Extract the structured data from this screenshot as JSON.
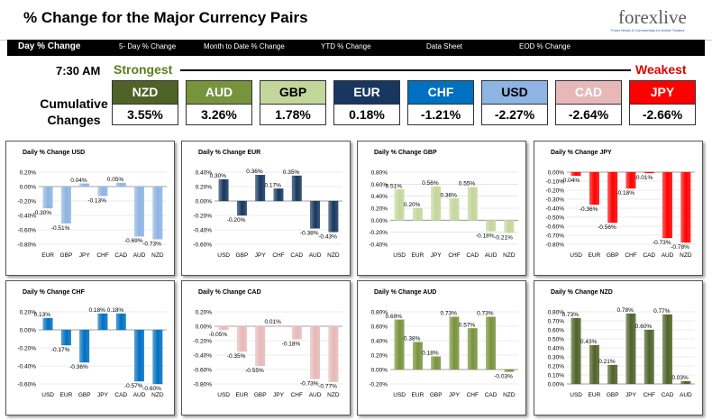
{
  "header": {
    "title": "% Change for the Major Currency Pairs",
    "logo_main": "forexlive",
    "logo_tag": "Forex News & Commentary for Active Traders"
  },
  "nav": [
    {
      "label": "Day % Change",
      "active": true
    },
    {
      "label": "5- Day % Change"
    },
    {
      "label": "Month to Date % Change"
    },
    {
      "label": "YTD % Change"
    },
    {
      "label": "Data Sheet"
    },
    {
      "label": "EOD % Change"
    }
  ],
  "time": "7:30 AM",
  "strongest_label": "Strongest",
  "weakest_label": "Weakest",
  "cumulative_label": "Cumulative Changes",
  "cumulative": [
    {
      "ccy": "NZD",
      "value": "3.55%",
      "color": "#4f6228"
    },
    {
      "ccy": "AUD",
      "value": "3.26%",
      "color": "#77933c"
    },
    {
      "ccy": "GBP",
      "value": "1.78%",
      "color": "#c3d69b",
      "text_color": "#000"
    },
    {
      "ccy": "EUR",
      "value": "0.18%",
      "color": "#17375e"
    },
    {
      "ccy": "CHF",
      "value": "-1.21%",
      "color": "#0070c0"
    },
    {
      "ccy": "USD",
      "value": "-2.27%",
      "color": "#8db4e2",
      "text_color": "#000"
    },
    {
      "ccy": "CAD",
      "value": "-2.64%",
      "color": "#e6b9b8"
    },
    {
      "ccy": "JPY",
      "value": "-2.66%",
      "color": "#ff0000"
    }
  ],
  "chart_data": [
    {
      "type": "bar",
      "title": "Daily % Change USD",
      "categories": [
        "EUR",
        "GBP",
        "JPY",
        "CHF",
        "CAD",
        "AUD",
        "NZD"
      ],
      "values": [
        -0.3,
        -0.51,
        0.04,
        -0.13,
        0.05,
        -0.69,
        -0.73
      ],
      "labels": [
        "-0.30%",
        "-0.51%",
        "0.04%",
        "-0.13%",
        "0.05%",
        "-0.69%",
        "-0.73%"
      ],
      "ylim": [
        -0.8,
        0.2
      ],
      "yticks": [
        "0.20%",
        "0.00%",
        "-0.20%",
        "-0.40%",
        "-0.60%",
        "-0.80%"
      ],
      "color": "#8db4e2"
    },
    {
      "type": "bar",
      "title": "Daily % Change EUR",
      "categories": [
        "USD",
        "GBP",
        "JPY",
        "CHF",
        "CAD",
        "AUD",
        "NZD"
      ],
      "values": [
        0.3,
        -0.2,
        0.36,
        0.17,
        0.35,
        -0.38,
        -0.43
      ],
      "labels": [
        "0.30%",
        "-0.20%",
        "0.36%",
        "0.17%",
        "0.35%",
        "-0.38%",
        "-0.43%"
      ],
      "ylim": [
        -0.6,
        0.4
      ],
      "yticks": [
        "0.40%",
        "0.20%",
        "0.00%",
        "-0.20%",
        "-0.40%",
        "-0.60%"
      ],
      "color": "#17375e"
    },
    {
      "type": "bar",
      "title": "Daily % Change GBP",
      "categories": [
        "USD",
        "EUR",
        "JPY",
        "CHF",
        "CAD",
        "AUD",
        "NZD"
      ],
      "values": [
        0.51,
        0.2,
        0.56,
        0.36,
        0.55,
        -0.18,
        -0.21
      ],
      "labels": [
        "0.51%",
        "0.20%",
        "0.56%",
        "0.36%",
        "0.55%",
        "-0.18%",
        "-0.21%"
      ],
      "ylim": [
        -0.4,
        0.8
      ],
      "yticks": [
        "0.80%",
        "0.60%",
        "0.40%",
        "0.20%",
        "0.00%",
        "-0.20%",
        "-0.40%"
      ],
      "color": "#c3d69b"
    },
    {
      "type": "bar",
      "title": "Daily % Change JPY",
      "categories": [
        "USD",
        "EUR",
        "GBP",
        "CHF",
        "CAD",
        "AUD",
        "NZD"
      ],
      "values": [
        -0.04,
        -0.36,
        -0.56,
        -0.18,
        -0.01,
        -0.73,
        -0.78
      ],
      "labels": [
        "-0.04%",
        "-0.36%",
        "-0.56%",
        "-0.18%",
        "-0.01%",
        "-0.73%",
        "-0.78%"
      ],
      "ylim": [
        -0.8,
        0.0
      ],
      "yticks": [
        "0.00%",
        "-0.10%",
        "-0.20%",
        "-0.30%",
        "-0.40%",
        "-0.50%",
        "-0.60%",
        "-0.70%",
        "-0.80%"
      ],
      "color": "#ff0000"
    },
    {
      "type": "bar",
      "title": "Daily % Change CHF",
      "categories": [
        "USD",
        "EUR",
        "GBP",
        "JPY",
        "CAD",
        "AUD",
        "NZD"
      ],
      "values": [
        0.13,
        -0.17,
        -0.36,
        0.18,
        0.18,
        -0.57,
        -0.6
      ],
      "labels": [
        "0.13%",
        "-0.17%",
        "-0.36%",
        "0.18%",
        "0.18%",
        "-0.57%",
        "-0.60%"
      ],
      "ylim": [
        -0.6,
        0.2
      ],
      "yticks": [
        "0.20%",
        "0.00%",
        "-0.20%",
        "-0.40%",
        "-0.60%"
      ],
      "color": "#0070c0"
    },
    {
      "type": "bar",
      "title": "Daily % Change CAD",
      "categories": [
        "USD",
        "EUR",
        "GBP",
        "JPY",
        "CHF",
        "AUD",
        "NZD"
      ],
      "values": [
        -0.05,
        -0.35,
        -0.55,
        0.01,
        -0.18,
        -0.73,
        -0.77
      ],
      "labels": [
        "-0.05%",
        "-0.35%",
        "-0.55%",
        "0.01%",
        "-0.18%",
        "-0.73%",
        "-0.77%"
      ],
      "ylim": [
        -0.8,
        0.2
      ],
      "yticks": [
        "0.20%",
        "0.00%",
        "-0.20%",
        "-0.40%",
        "-0.60%",
        "-0.80%"
      ],
      "color": "#e6b9b8"
    },
    {
      "type": "bar",
      "title": "Daily % Change AUD",
      "categories": [
        "USD",
        "EUR",
        "GBP",
        "JPY",
        "CHF",
        "CAD",
        "NZD"
      ],
      "values": [
        0.69,
        0.38,
        0.18,
        0.73,
        0.57,
        0.73,
        -0.03
      ],
      "labels": [
        "0.69%",
        "0.38%",
        "0.18%",
        "0.73%",
        "0.57%",
        "0.73%",
        "-0.03%"
      ],
      "ylim": [
        -0.2,
        0.8
      ],
      "yticks": [
        "0.80%",
        "0.60%",
        "0.40%",
        "0.20%",
        "0.00%",
        "-0.20%"
      ],
      "color": "#77933c"
    },
    {
      "type": "bar",
      "title": "Daily % Change NZD",
      "categories": [
        "USD",
        "EUR",
        "GBP",
        "JPY",
        "CHF",
        "CAD",
        "AUD"
      ],
      "values": [
        0.73,
        0.43,
        0.21,
        0.78,
        0.6,
        0.77,
        0.03
      ],
      "labels": [
        "0.73%",
        "0.43%",
        "0.21%",
        "0.78%",
        "0.60%",
        "0.77%",
        "0.03%"
      ],
      "ylim": [
        0.0,
        0.8
      ],
      "yticks": [
        "0.80%",
        "0.70%",
        "0.60%",
        "0.50%",
        "0.40%",
        "0.30%",
        "0.20%",
        "0.10%",
        "0.00%"
      ],
      "color": "#4f6228"
    }
  ]
}
